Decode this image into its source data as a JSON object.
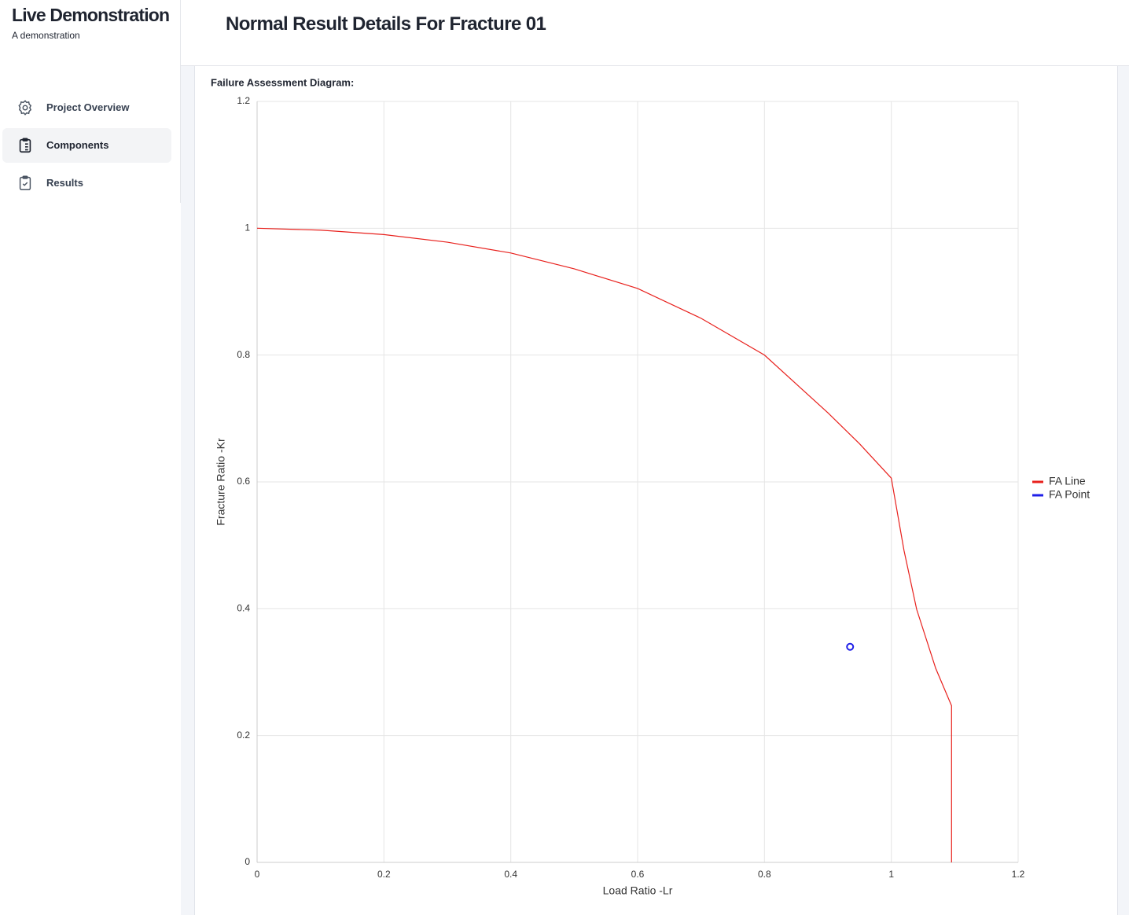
{
  "app": {
    "title": "Live Demonstration",
    "subtitle": "A demonstration"
  },
  "nav": [
    "Project Overview",
    "Components",
    "Results"
  ],
  "page_title": "Normal Result Details For Fracture 01",
  "chart_data": {
    "type": "line",
    "title": "Failure Assessment Diagram:",
    "x_label": "Load Ratio -Lr",
    "y_label": "Fracture Ratio -Kr",
    "xlim": [
      0,
      1.2
    ],
    "ylim": [
      0,
      1.2
    ],
    "xticks": [
      0,
      0.2,
      0.4,
      0.6,
      0.8,
      1,
      1.2
    ],
    "yticks": [
      0,
      0.2,
      0.4,
      0.6,
      0.8,
      1,
      1.2
    ],
    "grid": true,
    "legend": "right",
    "series": [
      {
        "name": "FA Line",
        "type": "line",
        "color": "#e8201c",
        "x": [
          0,
          0.1,
          0.2,
          0.3,
          0.4,
          0.5,
          0.6,
          0.7,
          0.8,
          0.9,
          0.95,
          1,
          1.02,
          1.04,
          1.07,
          1.095,
          1.095
        ],
        "values": [
          1,
          0.997,
          0.99,
          0.978,
          0.961,
          0.936,
          0.905,
          0.858,
          0.8,
          0.709,
          0.66,
          0.606,
          0.492,
          0.399,
          0.306,
          0.247,
          0
        ]
      },
      {
        "name": "FA Point",
        "type": "scatter",
        "color": "#1f1fe8",
        "x": [
          0.935
        ],
        "values": [
          0.34
        ]
      }
    ]
  }
}
